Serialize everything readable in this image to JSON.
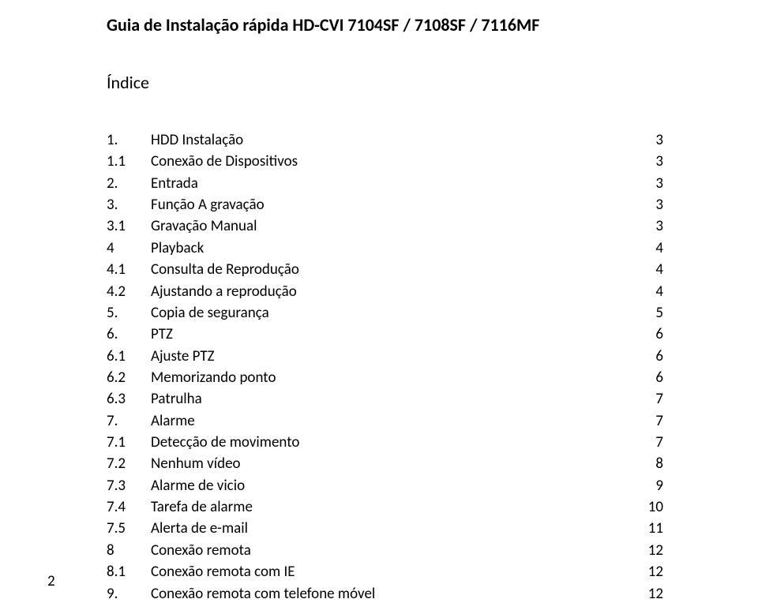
{
  "document": {
    "title": "Guia de Instalação rápida HD-CVI 7104SF / 7108SF / 7116MF",
    "index_heading": "Índice",
    "page_number": "2",
    "text_color": "#000000",
    "background_color": "#ffffff",
    "title_fontsize_pt": 16,
    "body_fontsize_pt": 14,
    "toc": [
      {
        "num": "1.",
        "label": "HDD Instalação",
        "page": "3"
      },
      {
        "num": "1.1",
        "label": "Conexão de Dispositivos",
        "page": "3"
      },
      {
        "num": "2.",
        "label": "Entrada",
        "page": "3"
      },
      {
        "num": "3.",
        "label": "Função  A gravação",
        "page": "3"
      },
      {
        "num": "3.1",
        "label": "Gravação Manual",
        "page": "3"
      },
      {
        "num": "4",
        "label": "Playback",
        "page": "4"
      },
      {
        "num": "4.1",
        "label": "Consulta de Reprodução",
        "page": "4"
      },
      {
        "num": "4.2",
        "label": "Ajustando a reprodução",
        "page": "4"
      },
      {
        "num": "5.",
        "label": "Copia de segurança",
        "page": "5"
      },
      {
        "num": "6.",
        "label": "PTZ",
        "page": "6"
      },
      {
        "num": "6.1",
        "label": "Ajuste PTZ",
        "page": "6"
      },
      {
        "num": "6.2",
        "label": "Memorizando ponto",
        "page": "6"
      },
      {
        "num": "6.3",
        "label": "Patrulha",
        "page": "7"
      },
      {
        "num": "7.",
        "label": "Alarme",
        "page": "7"
      },
      {
        "num": "7.1",
        "label": "Detecção de movimento",
        "page": "7"
      },
      {
        "num": "7.2",
        "label": "Nenhum vídeo",
        "page": "8"
      },
      {
        "num": "7.3",
        "label": "Alarme de vicio",
        "page": "9"
      },
      {
        "num": "7.4",
        "label": "Tarefa de alarme",
        "page": "10"
      },
      {
        "num": "7.5",
        "label": "Alerta de e-mail",
        "page": "11"
      },
      {
        "num": "8",
        "label": "Conexão remota",
        "page": "12"
      },
      {
        "num": "8.1",
        "label": "Conexão remota com IE",
        "page": "12"
      },
      {
        "num": "9.",
        "label": "Conexão remota com telefone móvel",
        "page": "12"
      }
    ]
  }
}
